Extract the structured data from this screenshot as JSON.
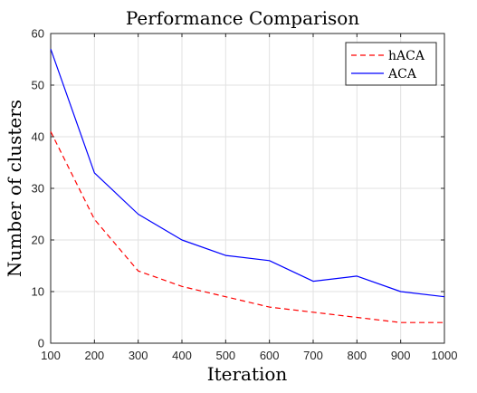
{
  "chart_data": {
    "type": "line",
    "title": "Performance Comparison",
    "xlabel": "Iteration",
    "ylabel": "Number of clusters",
    "x": [
      100,
      200,
      300,
      400,
      500,
      600,
      700,
      800,
      900,
      1000
    ],
    "xlim": [
      100,
      1000
    ],
    "ylim": [
      0,
      60
    ],
    "xticks": [
      "100",
      "200",
      "300",
      "400",
      "500",
      "600",
      "700",
      "800",
      "900",
      "1000"
    ],
    "yticks": [
      "0",
      "10",
      "20",
      "30",
      "40",
      "50",
      "60"
    ],
    "grid": true,
    "legend_position": "top-right",
    "series": [
      {
        "name": "hACA",
        "color": "#ff0000",
        "line_style": "dashed",
        "values": [
          41,
          24,
          14,
          11,
          9,
          7,
          6,
          5,
          4,
          4
        ]
      },
      {
        "name": "ACA",
        "color": "#0000ff",
        "line_style": "solid",
        "values": [
          57,
          33,
          25,
          20,
          17,
          16,
          12,
          13,
          10,
          9
        ]
      }
    ]
  }
}
